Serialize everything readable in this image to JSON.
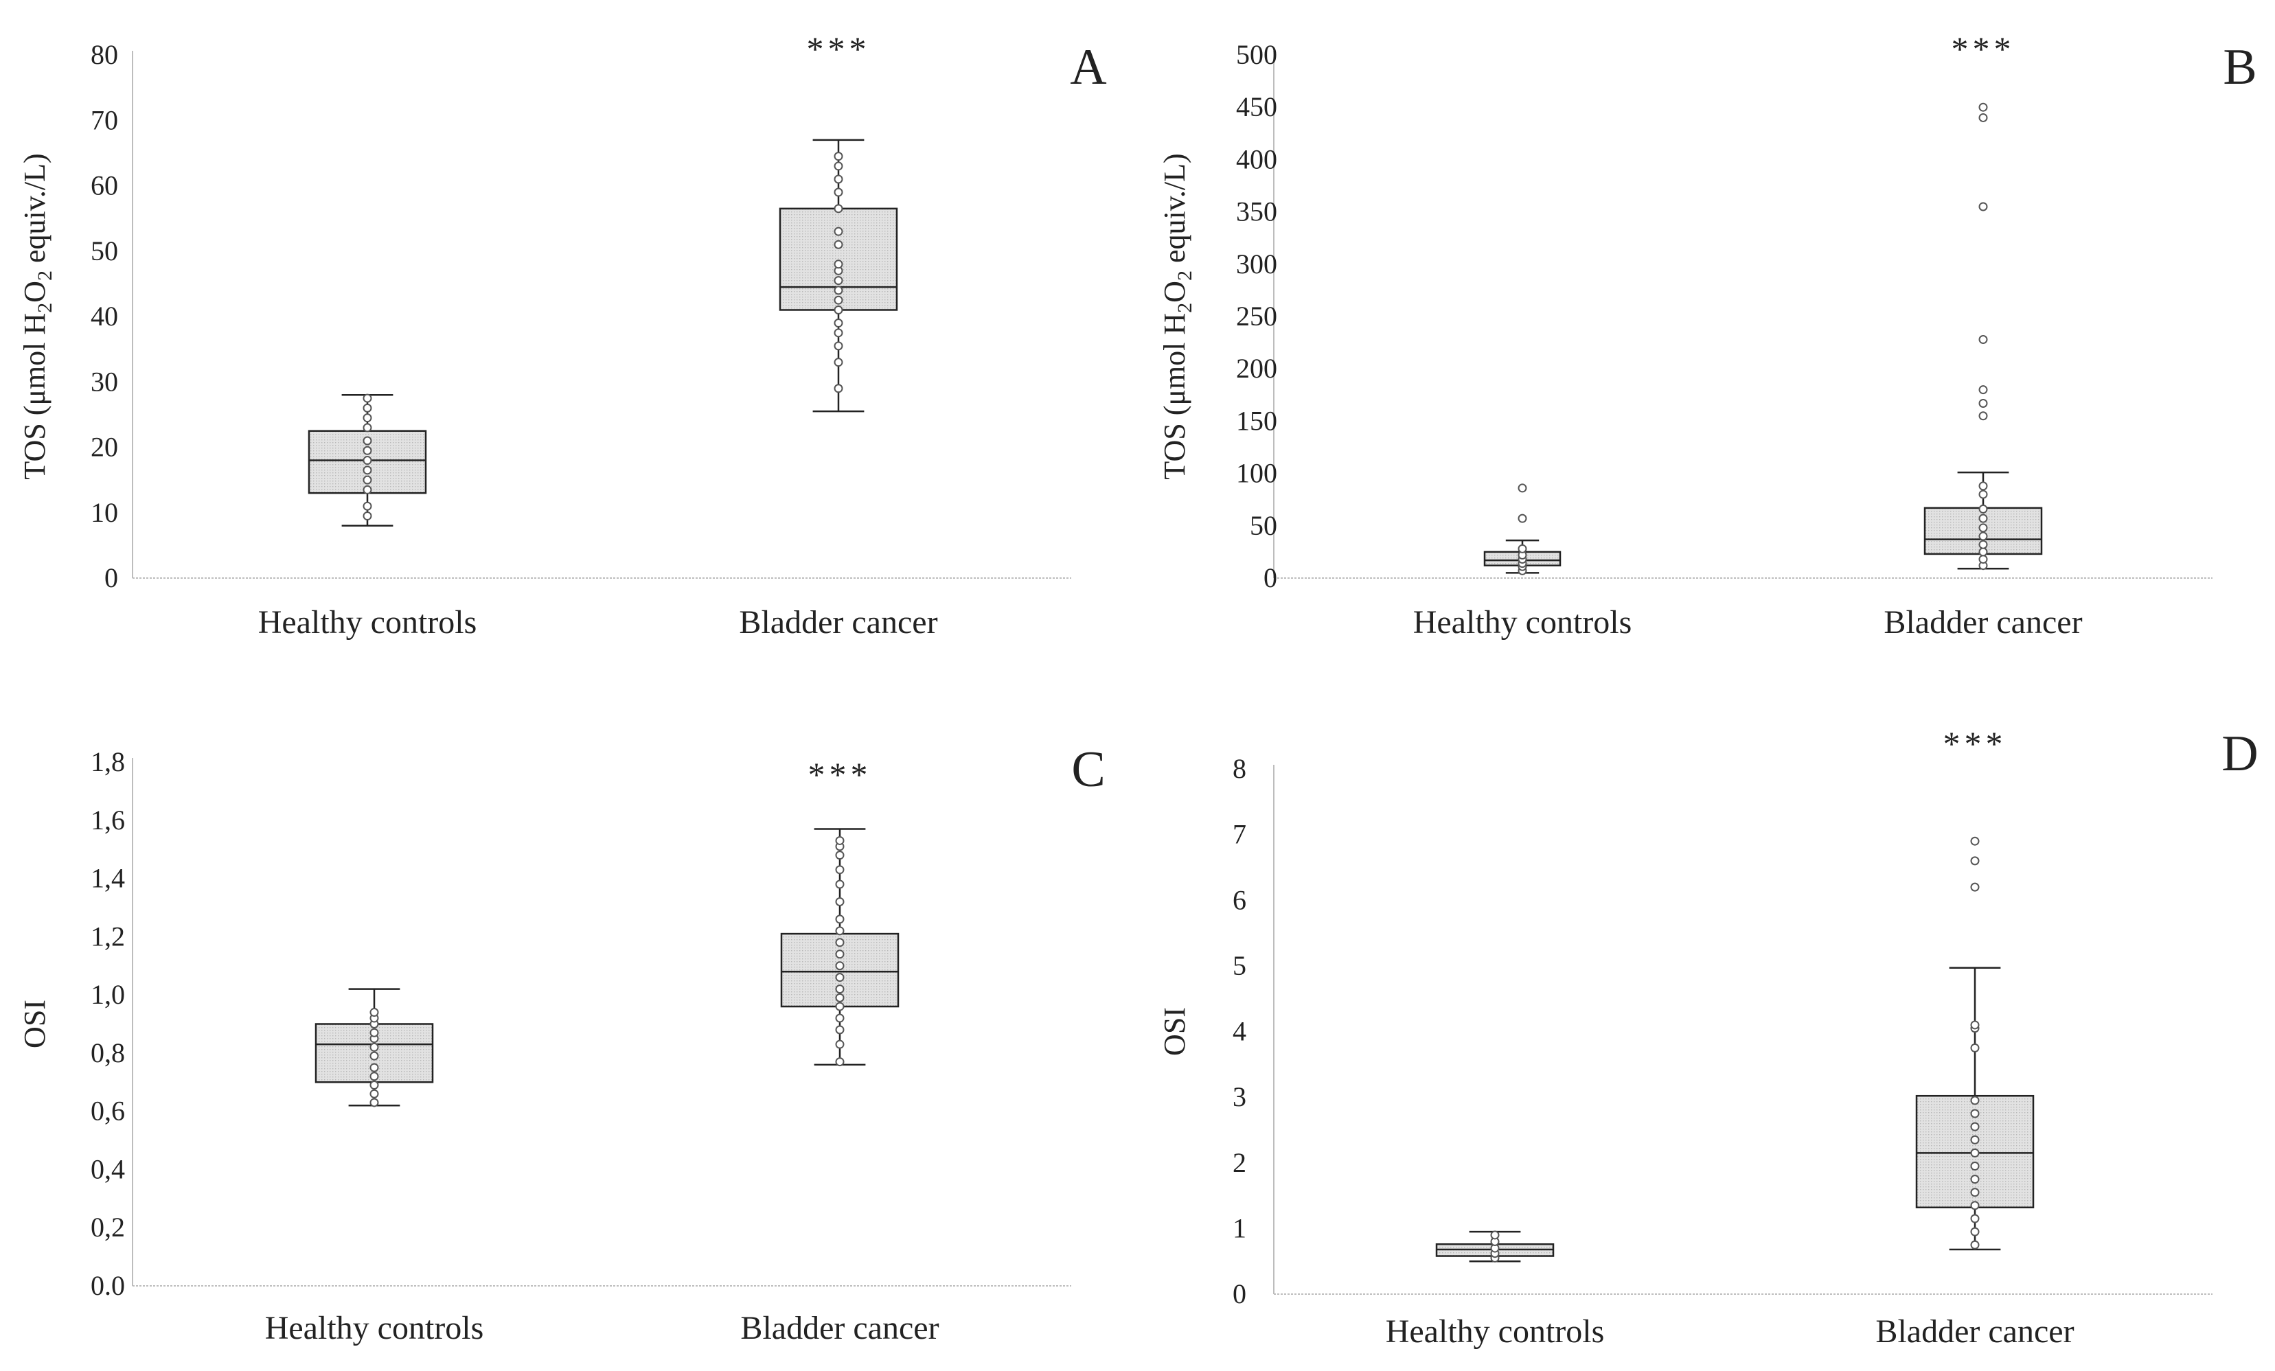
{
  "figure": {
    "box_fill": "#e2e2e2",
    "line_color": "#222222",
    "axis_color": "#bdbdbd"
  },
  "chart_data": [
    {
      "type": "box",
      "panel": "A",
      "significance": "***",
      "ylabel": "TOS (μmol H2O2 equiv./L)",
      "ylabel_parts": {
        "pre": "TOS (μmol H",
        "sub1": "2",
        "mid": "O",
        "sub2": "2",
        "post": " equiv./L)"
      },
      "ylim": [
        0,
        80
      ],
      "yticks": [
        0,
        10,
        20,
        30,
        40,
        50,
        60,
        70,
        80
      ],
      "ytick_labels": [
        "0",
        "10",
        "20",
        "30",
        "40",
        "50",
        "60",
        "70",
        "80"
      ],
      "categories": [
        "Healthy controls",
        "Bladder cancer"
      ],
      "series": [
        {
          "name": "Healthy controls",
          "min": 8,
          "q1": 13,
          "median": 18,
          "q3": 22.5,
          "max": 28,
          "points": [
            9.5,
            11,
            13.5,
            15,
            16.5,
            18,
            19.5,
            21,
            23,
            24.5,
            26,
            27.5
          ]
        },
        {
          "name": "Bladder cancer",
          "min": 25.5,
          "q1": 41,
          "median": 44.5,
          "q3": 56.5,
          "max": 67,
          "points": [
            29,
            33,
            35.5,
            37.5,
            39,
            41,
            42.5,
            44,
            45.5,
            47,
            48,
            51,
            53,
            56.5,
            59,
            61,
            63,
            64.5
          ]
        }
      ]
    },
    {
      "type": "box",
      "panel": "B",
      "significance": "***",
      "ylabel": "TOS (μmol H2O2 equiv./L)",
      "ylabel_parts": {
        "pre": "TOS (μmol H",
        "sub1": "2",
        "mid": "O",
        "sub2": "2",
        "post": " equiv./L)"
      },
      "ylim": [
        0,
        500
      ],
      "yticks": [
        0,
        50,
        100,
        150,
        200,
        250,
        300,
        350,
        400,
        450,
        500
      ],
      "ytick_labels": [
        "0",
        "50",
        "100",
        "150",
        "200",
        "250",
        "300",
        "350",
        "400",
        "450",
        "500"
      ],
      "categories": [
        "Healthy controls",
        "Bladder cancer"
      ],
      "series": [
        {
          "name": "Healthy controls",
          "min": 5,
          "q1": 12,
          "median": 17,
          "q3": 25,
          "max": 36,
          "points": [
            7,
            11,
            14,
            18,
            22,
            28,
            57,
            86
          ]
        },
        {
          "name": "Bladder cancer",
          "min": 9,
          "q1": 23,
          "median": 37,
          "q3": 67,
          "max": 101,
          "points": [
            12,
            18,
            25,
            32,
            40,
            48,
            57,
            66,
            80,
            88,
            155,
            167,
            180,
            228,
            355,
            440,
            450
          ]
        }
      ]
    },
    {
      "type": "box",
      "panel": "C",
      "significance": "***",
      "ylabel": "OSI",
      "ylim": [
        0,
        1.8
      ],
      "yticks": [
        0,
        0.2,
        0.4,
        0.6,
        0.8,
        1.0,
        1.2,
        1.4,
        1.6,
        1.8
      ],
      "ytick_labels": [
        "0.0",
        "0,2",
        "0,4",
        "0,6",
        "0,8",
        "1,0",
        "1,2",
        "1,4",
        "1,6",
        "1,8"
      ],
      "categories": [
        "Healthy controls",
        "Bladder cancer"
      ],
      "series": [
        {
          "name": "Healthy controls",
          "min": 0.62,
          "q1": 0.7,
          "median": 0.83,
          "q3": 0.9,
          "max": 1.02,
          "points": [
            0.63,
            0.66,
            0.69,
            0.72,
            0.75,
            0.79,
            0.82,
            0.85,
            0.87,
            0.9,
            0.92,
            0.94
          ]
        },
        {
          "name": "Bladder cancer",
          "min": 0.76,
          "q1": 0.96,
          "median": 1.08,
          "q3": 1.21,
          "max": 1.57,
          "points": [
            0.77,
            0.83,
            0.88,
            0.92,
            0.96,
            0.99,
            1.02,
            1.06,
            1.1,
            1.14,
            1.18,
            1.22,
            1.26,
            1.32,
            1.38,
            1.43,
            1.48,
            1.51,
            1.53
          ]
        }
      ]
    },
    {
      "type": "box",
      "panel": "D",
      "significance": "***",
      "ylabel": "OSI",
      "ylim": [
        0,
        8
      ],
      "yticks": [
        0,
        1,
        2,
        3,
        4,
        5,
        6,
        7,
        8
      ],
      "ytick_labels": [
        "0",
        "1",
        "2",
        "3",
        "4",
        "5",
        "6",
        "7",
        "8"
      ],
      "categories": [
        "Healthy controls",
        "Bladder cancer"
      ],
      "series": [
        {
          "name": "Healthy controls",
          "min": 0.5,
          "q1": 0.58,
          "median": 0.68,
          "q3": 0.76,
          "max": 0.95,
          "points": [
            0.55,
            0.62,
            0.7,
            0.8,
            0.9
          ]
        },
        {
          "name": "Bladder cancer",
          "min": 0.68,
          "q1": 1.32,
          "median": 2.15,
          "q3": 3.02,
          "max": 4.97,
          "points": [
            0.75,
            0.95,
            1.15,
            1.35,
            1.55,
            1.75,
            1.95,
            2.15,
            2.35,
            2.55,
            2.75,
            2.95,
            3.75,
            4.05,
            4.1,
            6.2,
            6.6,
            6.9
          ]
        }
      ]
    }
  ]
}
